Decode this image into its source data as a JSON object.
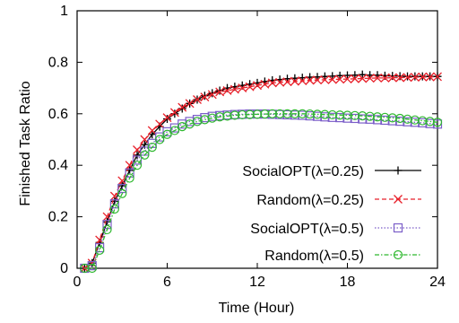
{
  "chart_data": {
    "type": "line",
    "xlabel": "Time (Hour)",
    "ylabel": "Finished Task Ratio",
    "xlim": [
      0,
      24
    ],
    "ylim": [
      0,
      1
    ],
    "xticks": [
      "0",
      "6",
      "12",
      "18",
      "24"
    ],
    "yticks": [
      "0",
      "0.2",
      "0.4",
      "0.6",
      "0.8",
      "1"
    ],
    "grid": false,
    "legend_position": "bottom-right",
    "series": [
      {
        "name": "SocialOPT(λ=0.25)",
        "color": "#000000",
        "line_style": "solid",
        "marker": "plus",
        "x": [
          0.5,
          1,
          1.5,
          2,
          2.5,
          3,
          3.5,
          4,
          4.5,
          5,
          5.5,
          6,
          6.5,
          7,
          7.5,
          8,
          8.5,
          9,
          9.5,
          10,
          10.5,
          11,
          11.5,
          12,
          12.5,
          13,
          13.5,
          14,
          14.5,
          15,
          15.5,
          16,
          16.5,
          17,
          17.5,
          18,
          18.5,
          19,
          19.5,
          20,
          20.5,
          21,
          21.5,
          22,
          22.5,
          23,
          23.5,
          24
        ],
        "values": [
          0.0,
          0.02,
          0.1,
          0.18,
          0.26,
          0.32,
          0.38,
          0.44,
          0.48,
          0.52,
          0.55,
          0.58,
          0.6,
          0.62,
          0.64,
          0.655,
          0.67,
          0.68,
          0.69,
          0.7,
          0.705,
          0.71,
          0.715,
          0.72,
          0.725,
          0.73,
          0.733,
          0.736,
          0.738,
          0.74,
          0.742,
          0.743,
          0.745,
          0.746,
          0.748,
          0.749,
          0.75,
          0.752,
          0.75,
          0.75,
          0.748,
          0.747,
          0.746,
          0.745,
          0.745,
          0.745,
          0.745,
          0.745
        ]
      },
      {
        "name": "Random(λ=0.25)",
        "color": "#e8202a",
        "line_style": "dashed",
        "marker": "x",
        "x": [
          0.5,
          1,
          1.5,
          2,
          2.5,
          3,
          3.5,
          4,
          4.5,
          5,
          5.5,
          6,
          6.5,
          7,
          7.5,
          8,
          8.5,
          9,
          9.5,
          10,
          10.5,
          11,
          11.5,
          12,
          12.5,
          13,
          13.5,
          14,
          14.5,
          15,
          15.5,
          16,
          16.5,
          17,
          17.5,
          18,
          18.5,
          19,
          19.5,
          20,
          20.5,
          21,
          21.5,
          22,
          22.5,
          23,
          23.5,
          24
        ],
        "values": [
          0.0,
          0.02,
          0.11,
          0.2,
          0.28,
          0.34,
          0.4,
          0.46,
          0.5,
          0.535,
          0.56,
          0.585,
          0.605,
          0.625,
          0.64,
          0.655,
          0.665,
          0.675,
          0.685,
          0.69,
          0.695,
          0.7,
          0.705,
          0.71,
          0.715,
          0.72,
          0.722,
          0.724,
          0.726,
          0.728,
          0.73,
          0.731,
          0.732,
          0.733,
          0.734,
          0.735,
          0.736,
          0.737,
          0.738,
          0.739,
          0.739,
          0.74,
          0.74,
          0.741,
          0.742,
          0.743,
          0.743,
          0.744
        ]
      },
      {
        "name": "SocialOPT(λ=0.5)",
        "color": "#7b5ec8",
        "line_style": "dotted",
        "marker": "square",
        "x": [
          0.5,
          1,
          1.5,
          2,
          2.5,
          3,
          3.5,
          4,
          4.5,
          5,
          5.5,
          6,
          6.5,
          7,
          7.5,
          8,
          8.5,
          9,
          9.5,
          10,
          10.5,
          11,
          11.5,
          12,
          12.5,
          13,
          13.5,
          14,
          14.5,
          15,
          15.5,
          16,
          16.5,
          17,
          17.5,
          18,
          18.5,
          19,
          19.5,
          20,
          20.5,
          21,
          21.5,
          22,
          22.5,
          23,
          23.5,
          24
        ],
        "values": [
          0.0,
          0.01,
          0.08,
          0.17,
          0.25,
          0.31,
          0.37,
          0.42,
          0.455,
          0.485,
          0.51,
          0.53,
          0.545,
          0.56,
          0.57,
          0.578,
          0.585,
          0.59,
          0.593,
          0.595,
          0.597,
          0.598,
          0.599,
          0.599,
          0.599,
          0.598,
          0.597,
          0.596,
          0.595,
          0.594,
          0.592,
          0.59,
          0.588,
          0.586,
          0.585,
          0.583,
          0.582,
          0.58,
          0.579,
          0.577,
          0.575,
          0.573,
          0.571,
          0.569,
          0.567,
          0.565,
          0.562,
          0.56
        ]
      },
      {
        "name": "Random(λ=0.5)",
        "color": "#2eb82e",
        "line_style": "dash-dot",
        "marker": "circle",
        "x": [
          0.5,
          1,
          1.5,
          2,
          2.5,
          3,
          3.5,
          4,
          4.5,
          5,
          5.5,
          6,
          6.5,
          7,
          7.5,
          8,
          8.5,
          9,
          9.5,
          10,
          10.5,
          11,
          11.5,
          12,
          12.5,
          13,
          13.5,
          14,
          14.5,
          15,
          15.5,
          16,
          16.5,
          17,
          17.5,
          18,
          18.5,
          19,
          19.5,
          20,
          20.5,
          21,
          21.5,
          22,
          22.5,
          23,
          23.5,
          24
        ],
        "values": [
          0.0,
          0.0,
          0.07,
          0.15,
          0.23,
          0.29,
          0.35,
          0.4,
          0.44,
          0.47,
          0.5,
          0.52,
          0.535,
          0.55,
          0.56,
          0.57,
          0.577,
          0.583,
          0.588,
          0.591,
          0.594,
          0.596,
          0.597,
          0.598,
          0.599,
          0.6,
          0.6,
          0.6,
          0.6,
          0.6,
          0.599,
          0.598,
          0.597,
          0.596,
          0.595,
          0.594,
          0.593,
          0.592,
          0.59,
          0.588,
          0.586,
          0.584,
          0.582,
          0.579,
          0.576,
          0.573,
          0.57,
          0.567
        ]
      }
    ]
  }
}
